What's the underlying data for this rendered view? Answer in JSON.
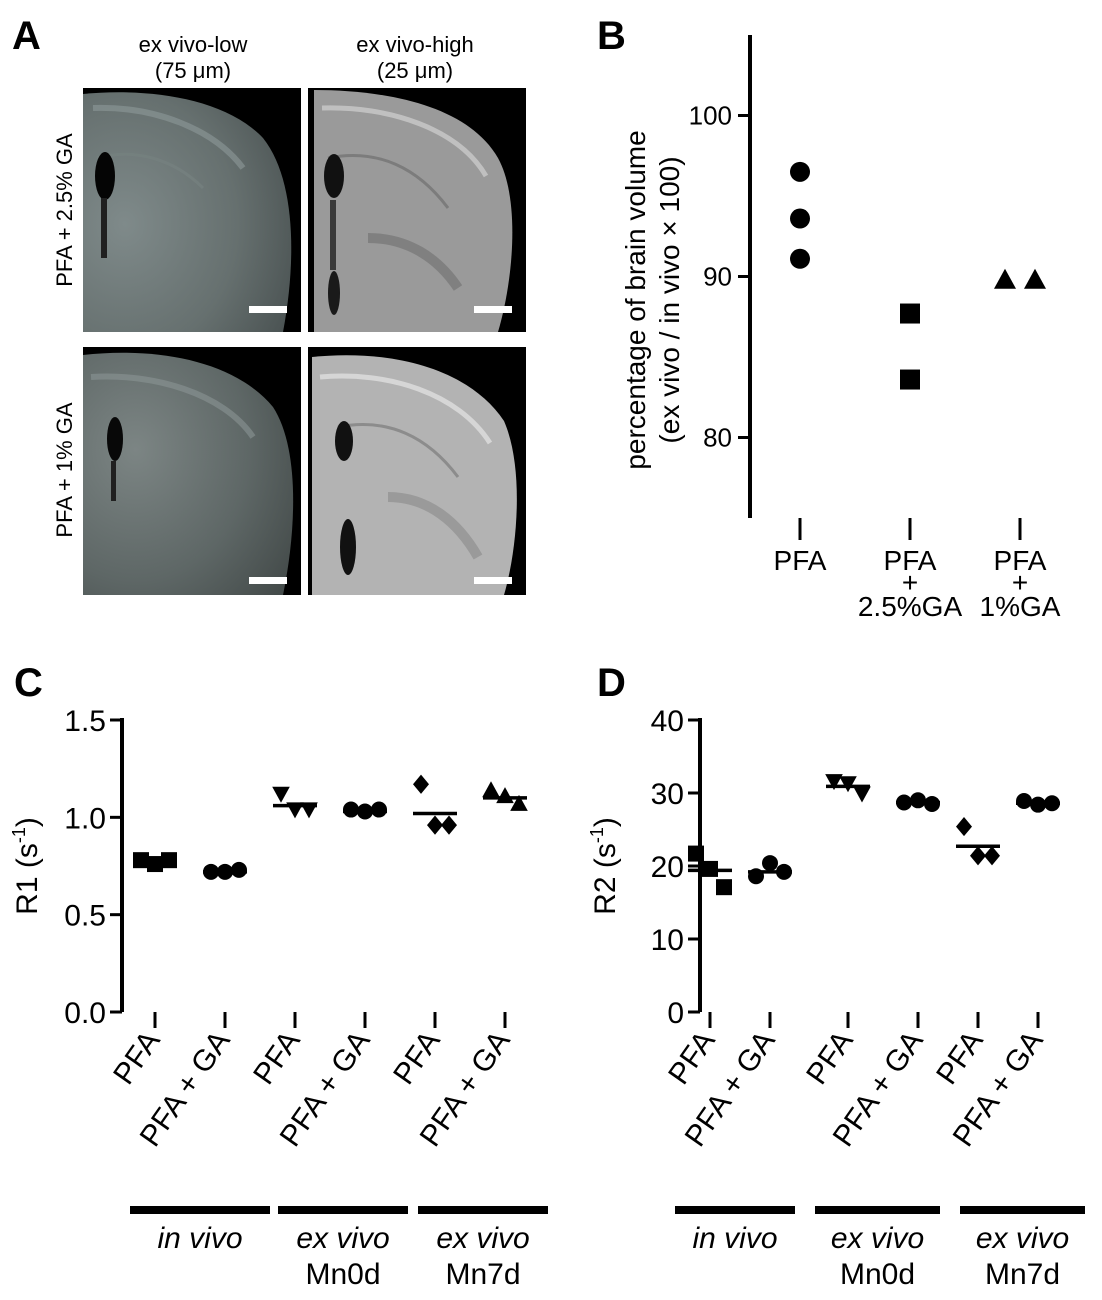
{
  "panelA": {
    "label": "A",
    "col_titles": [
      {
        "line1": "ex vivo-low",
        "line2": "(75 μm)"
      },
      {
        "line1": "ex vivo-high",
        "line2": "(25 μm)"
      }
    ],
    "row_labels": [
      "PFA + 2.5% GA",
      "PFA + 1% GA"
    ]
  },
  "chart_data": [
    {
      "panel": "B",
      "type": "scatter",
      "ylabel_line1": "percentage of brain volume",
      "ylabel_line2": "(ex vivo / in vivo × 100)",
      "ylim": [
        75,
        105
      ],
      "yticks": [
        80,
        90,
        100
      ],
      "groups": [
        {
          "label_lines": [
            "PFA"
          ],
          "marker": "circle",
          "values": [
            96.5,
            93.6,
            91.1
          ]
        },
        {
          "label_lines": [
            "PFA",
            "+",
            "2.5%GA"
          ],
          "marker": "square",
          "values": [
            87.7,
            83.6
          ]
        },
        {
          "label_lines": [
            "PFA",
            "+",
            "1%GA"
          ],
          "marker": "triangle",
          "values": [
            89.8,
            89.8
          ]
        }
      ]
    },
    {
      "panel": "C",
      "type": "scatter",
      "ylabel": "R1 (s",
      "ylabel_sup": "-1",
      "ylabel_close": ")",
      "ylim": [
        0,
        1.5
      ],
      "yticks": [
        "0.0",
        "0.5",
        "1.0",
        "1.5"
      ],
      "categories": [
        "PFA",
        "PFA + GA",
        "PFA",
        "PFA + GA",
        "PFA",
        "PFA + GA"
      ],
      "groups": [
        {
          "line1": "in vivo",
          "line2": ""
        },
        {
          "line1": "ex vivo",
          "line2": "Mn0d"
        },
        {
          "line1": "ex vivo",
          "line2": "Mn7d"
        }
      ],
      "series": [
        {
          "marker": "square",
          "values": [
            0.78,
            0.76,
            0.78
          ],
          "mean": 0.77
        },
        {
          "marker": "circle",
          "values": [
            0.72,
            0.72,
            0.73
          ],
          "mean": 0.72
        },
        {
          "marker": "triangle-down",
          "values": [
            1.12,
            1.04,
            1.04
          ],
          "mean": 1.06
        },
        {
          "marker": "circle",
          "values": [
            1.04,
            1.03,
            1.04
          ],
          "mean": 1.03
        },
        {
          "marker": "diamond",
          "values": [
            1.17,
            0.96,
            0.96
          ],
          "mean": 1.02
        },
        {
          "marker": "triangle-up",
          "values": [
            1.14,
            1.11,
            1.07
          ],
          "mean": 1.1
        }
      ]
    },
    {
      "panel": "D",
      "type": "scatter",
      "ylabel": "R2 (s",
      "ylabel_sup": "-1",
      "ylabel_close": ")",
      "ylim": [
        0,
        40
      ],
      "yticks": [
        "0",
        "10",
        "20",
        "30",
        "40"
      ],
      "categories": [
        "PFA",
        "PFA + GA",
        "PFA",
        "PFA + GA",
        "PFA",
        "PFA + GA"
      ],
      "groups": [
        {
          "line1": "in vivo",
          "line2": ""
        },
        {
          "line1": "ex vivo",
          "line2": "Mn0d"
        },
        {
          "line1": "ex vivo",
          "line2": "Mn7d"
        }
      ],
      "series": [
        {
          "marker": "square",
          "values": [
            21.7,
            19.6,
            17.1
          ],
          "mean": 19.4
        },
        {
          "marker": "circle",
          "values": [
            18.6,
            20.4,
            19.2
          ],
          "mean": 19.2
        },
        {
          "marker": "triangle-down",
          "values": [
            31.6,
            31.3,
            29.9
          ],
          "mean": 30.9
        },
        {
          "marker": "circle",
          "values": [
            28.7,
            29.0,
            28.5
          ],
          "mean": 28.7
        },
        {
          "marker": "diamond",
          "values": [
            25.4,
            21.4,
            21.4
          ],
          "mean": 22.7
        },
        {
          "marker": "circle",
          "values": [
            28.9,
            28.4,
            28.6
          ],
          "mean": 28.6
        }
      ]
    }
  ]
}
